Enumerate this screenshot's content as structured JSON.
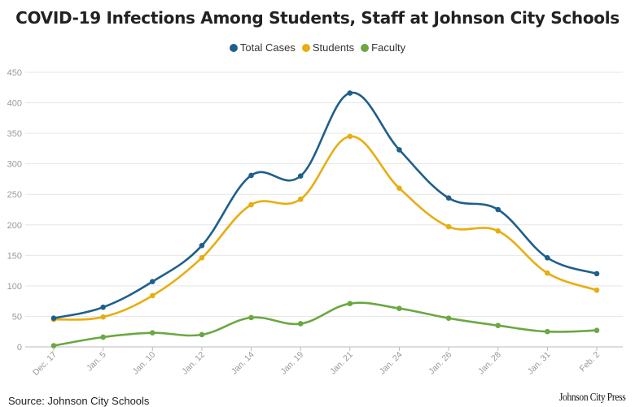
{
  "chart_data": {
    "type": "line",
    "title": "COVID-19 Infections Among Students, Staff at Johnson City Schools",
    "categories": [
      "Dec. 17",
      "Jan. 5",
      "Jan. 10",
      "Jan. 12",
      "Jan. 14",
      "Jan. 19",
      "Jan. 21",
      "Jan. 24",
      "Jan. 26",
      "Jan. 28",
      "Jan. 31",
      "Feb. 2"
    ],
    "series": [
      {
        "name": "Total Cases",
        "color": "#1f5f8b",
        "values": [
          47,
          65,
          107,
          166,
          281,
          280,
          416,
          323,
          244,
          225,
          146,
          120
        ]
      },
      {
        "name": "Students",
        "color": "#e8ad11",
        "values": [
          45,
          49,
          84,
          146,
          233,
          242,
          345,
          260,
          197,
          190,
          121,
          93
        ]
      },
      {
        "name": "Faculty",
        "color": "#6aa842",
        "values": [
          2,
          16,
          23,
          20,
          48,
          38,
          71,
          63,
          47,
          35,
          25,
          27
        ]
      }
    ],
    "y_ticks": [
      0,
      50,
      100,
      150,
      200,
      250,
      300,
      350,
      400,
      450
    ],
    "ylim": [
      0,
      450
    ],
    "grid": true,
    "legend": "top-center"
  },
  "footer": {
    "source": "Source: Johnson City Schools",
    "publisher": "Johnson City Press"
  }
}
